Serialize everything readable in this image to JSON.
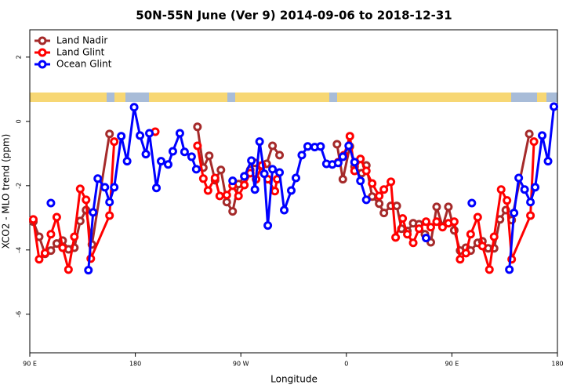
{
  "chart_data": {
    "type": "line",
    "title": "50N-55N June (Ver 9)   2014-09-06 to 2018-12-31",
    "x_label": "Longitude",
    "y_label": "XCO2 - MLO trend (ppm)",
    "xlim": [
      90,
      540
    ],
    "xticks": [
      {
        "value": 90,
        "label": "90 E"
      },
      {
        "value": 180,
        "label": "180"
      },
      {
        "value": 270,
        "label": "90 W"
      },
      {
        "value": 360,
        "label": "0"
      },
      {
        "value": 450,
        "label": "90 E"
      },
      {
        "value": 540,
        "label": "180"
      }
    ],
    "ylim": [
      -7.2,
      2.85
    ],
    "yticks": [
      2,
      0,
      -2,
      -4,
      -6
    ],
    "legend": "top-left",
    "series": [
      {
        "name": "Land Nadir",
        "color": "#a52a2a",
        "x": [
          93,
          98,
          103,
          108,
          113,
          118,
          123,
          128,
          133,
          138,
          143,
          158,
          190,
          233,
          238,
          243,
          248,
          253,
          258,
          263,
          268,
          273,
          278,
          282,
          287,
          292,
          297,
          303,
          330,
          352,
          357,
          363,
          367,
          373,
          377,
          382,
          388,
          392,
          398,
          403,
          407,
          412,
          417,
          422,
          427,
          432,
          437,
          442,
          447,
          452,
          457,
          462,
          466,
          472,
          476,
          481,
          486,
          491,
          496,
          501,
          516
        ],
        "values": [
          -3.12,
          -3.59,
          -4.12,
          -4.02,
          -3.8,
          -3.71,
          -3.98,
          -3.93,
          -3.1,
          -2.76,
          -3.83,
          -0.39,
          null,
          -0.17,
          -1.44,
          -1.07,
          -1.83,
          -1.51,
          -2.51,
          -2.8,
          -1.95,
          -1.71,
          -1.51,
          -1.29,
          -1.39,
          -1.32,
          -0.76,
          -1.05,
          null,
          -0.71,
          -1.8,
          -0.78,
          -1.41,
          -1.61,
          -1.37,
          -2.34,
          -2.56,
          -2.85,
          -2.63,
          -2.63,
          -3.34,
          -3.41,
          -3.17,
          -3.2,
          -3.51,
          -3.76,
          -2.66,
          -3.27,
          -2.66,
          -3.39,
          -4.02,
          -3.93,
          -4.02,
          -3.78,
          -3.73,
          -3.95,
          -3.95,
          -3.05,
          -2.76,
          -3.07,
          -0.39
        ]
      },
      {
        "name": "Land Glint",
        "color": "#ff0000",
        "x": [
          93,
          98,
          103,
          108,
          113,
          118,
          123,
          128,
          133,
          138,
          142,
          158,
          162,
          180,
          197,
          215,
          233,
          238,
          242,
          248,
          252,
          258,
          263,
          268,
          273,
          278,
          283,
          288,
          293,
          299,
          301,
          320,
          353,
          358,
          363,
          367,
          372,
          377,
          382,
          388,
          392,
          398,
          402,
          408,
          412,
          417,
          422,
          428,
          432,
          437,
          442,
          447,
          452,
          457,
          462,
          466,
          472,
          476,
          482,
          486,
          492,
          497,
          501,
          517,
          520
        ],
        "values": [
          -3.05,
          -4.29,
          -4.1,
          -3.51,
          -2.98,
          -3.93,
          -4.61,
          -3.59,
          -2.1,
          -2.44,
          -4.27,
          -2.93,
          -0.63,
          null,
          -0.32,
          null,
          -0.76,
          -1.78,
          -2.15,
          -1.76,
          -2.32,
          -2.29,
          -2.0,
          -2.32,
          -1.98,
          -1.61,
          -1.8,
          -1.37,
          -1.8,
          -2.17,
          -1.8,
          null,
          -1.27,
          -1.05,
          -0.46,
          -1.54,
          -1.17,
          -1.54,
          -1.93,
          -2.32,
          -2.12,
          -1.88,
          -3.61,
          -3.02,
          -3.51,
          -3.78,
          -3.34,
          -3.12,
          -3.29,
          -3.12,
          -3.29,
          -3.17,
          -3.12,
          -4.29,
          -4.1,
          -3.51,
          -2.98,
          -3.88,
          -4.61,
          -3.59,
          -2.12,
          -2.46,
          -4.29,
          -2.93,
          -0.63
        ]
      },
      {
        "name": "Ocean Glint",
        "color": "#0000ff",
        "x": [
          108,
          123,
          140,
          144,
          148,
          154,
          158,
          162,
          168,
          173,
          179,
          184,
          189,
          192,
          198,
          202,
          208,
          212,
          218,
          222,
          228,
          232,
          248,
          263,
          268,
          273,
          279,
          282,
          286,
          290,
          293,
          297,
          303,
          307,
          313,
          317,
          322,
          327,
          333,
          338,
          343,
          348,
          353,
          357,
          362,
          367,
          372,
          377,
          400,
          428,
          447,
          467,
          482,
          499,
          503,
          507,
          512,
          517,
          521,
          527,
          532,
          537
        ],
        "values": [
          -2.54,
          null,
          -4.63,
          -2.83,
          -1.78,
          -2.05,
          -2.51,
          -2.05,
          -0.46,
          -1.24,
          0.44,
          -0.44,
          -1.02,
          -0.37,
          -2.07,
          -1.24,
          -1.34,
          -0.93,
          -0.37,
          -0.95,
          -1.1,
          -1.49,
          null,
          -1.85,
          null,
          -1.71,
          -1.22,
          -2.12,
          -0.63,
          -1.63,
          -3.24,
          -1.49,
          -1.59,
          -2.76,
          -2.15,
          -1.76,
          -1.05,
          -0.78,
          -0.8,
          -0.78,
          -1.32,
          -1.34,
          -1.29,
          -1.1,
          -0.76,
          -1.27,
          -1.85,
          -2.44,
          null,
          -3.63,
          null,
          -2.54,
          null,
          -4.61,
          -2.85,
          -1.76,
          -2.12,
          -2.51,
          -2.05,
          -0.44,
          -1.24,
          0.46
        ]
      }
    ]
  }
}
